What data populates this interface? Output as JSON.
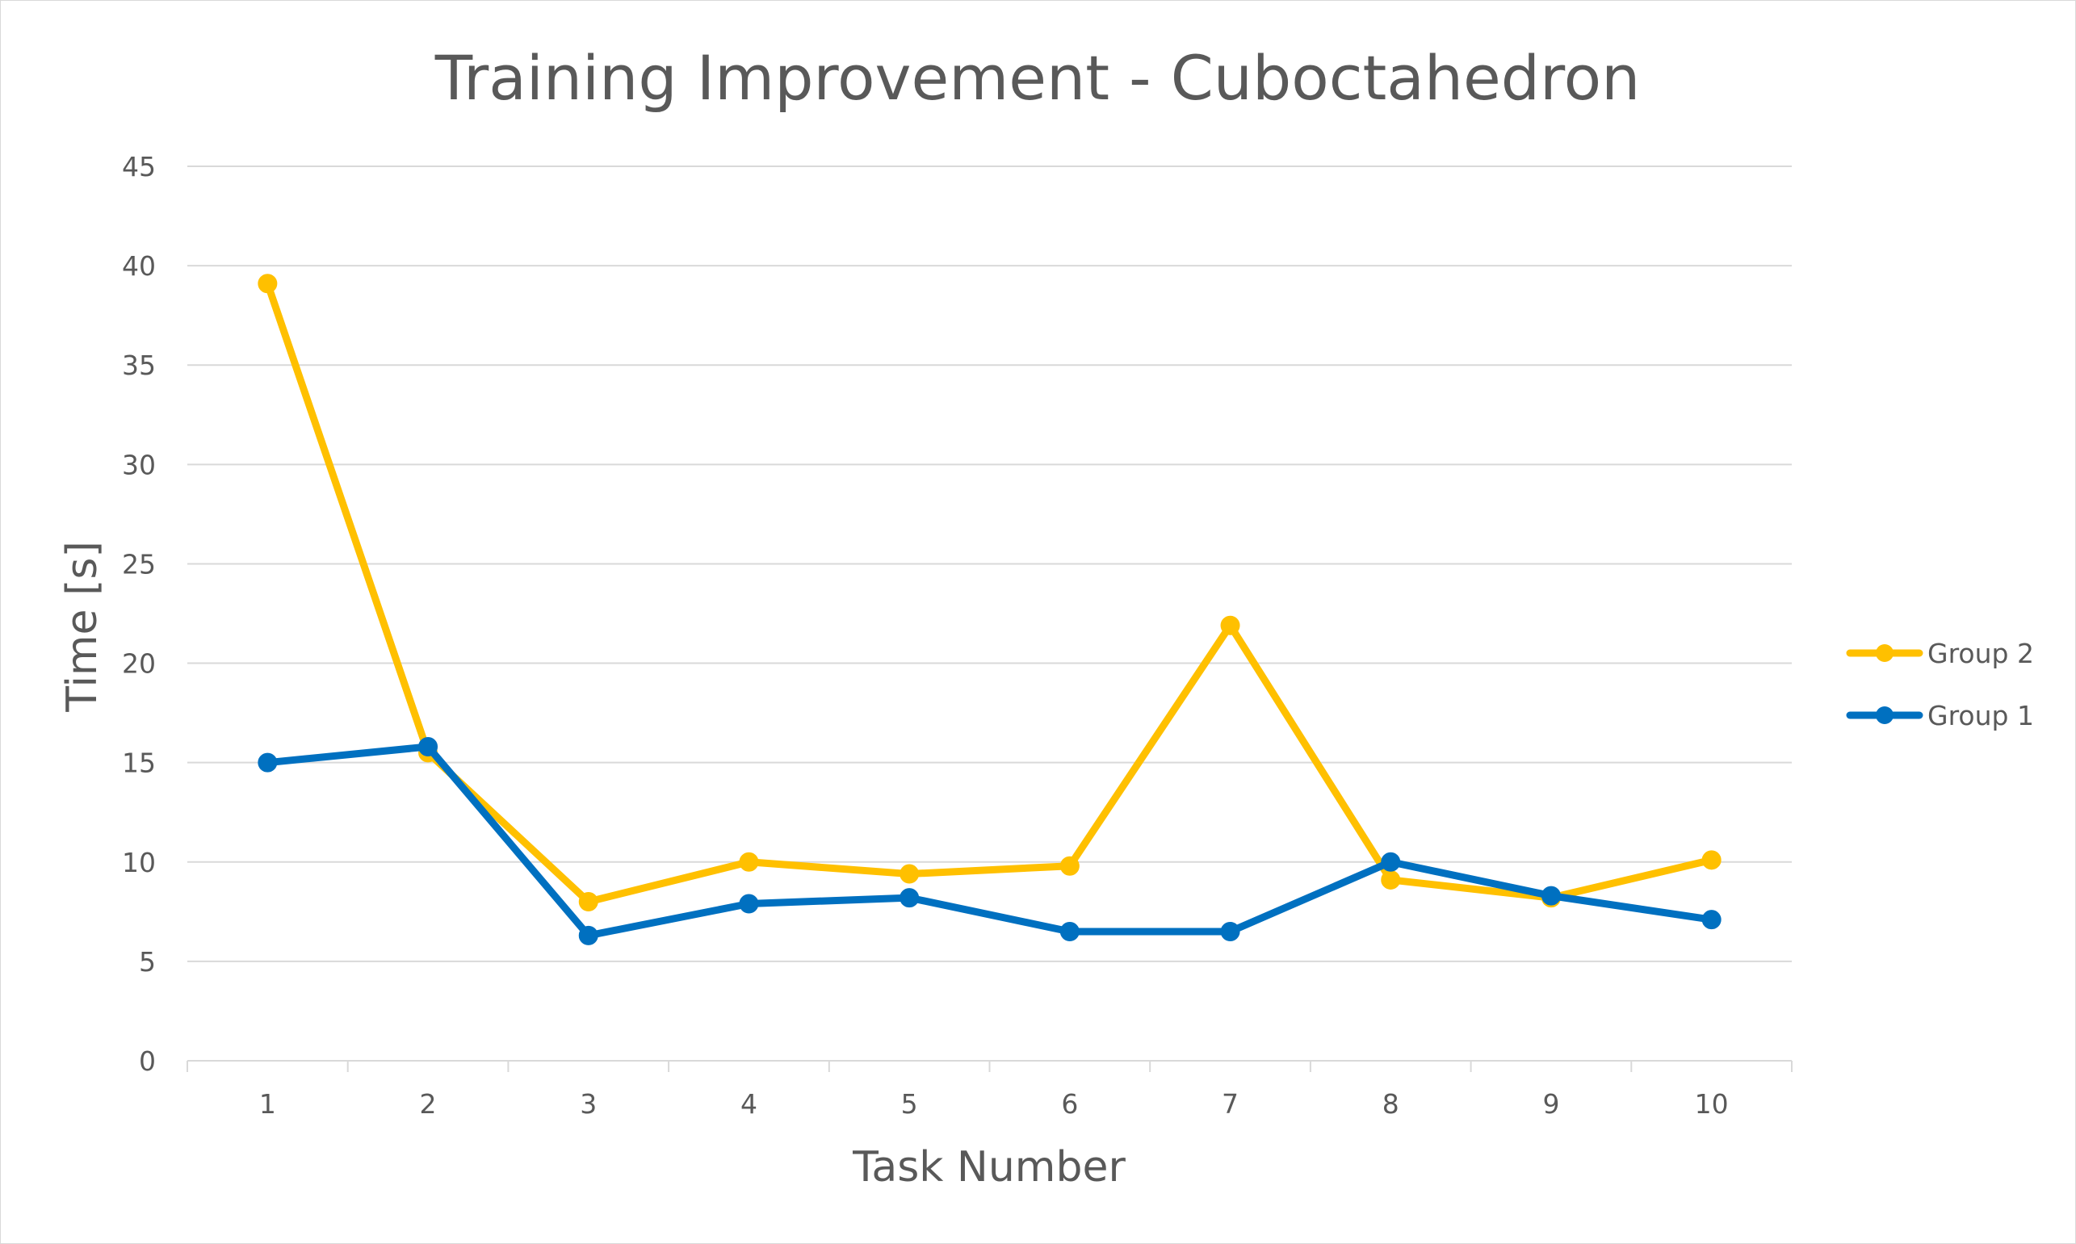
{
  "chart_data": {
    "type": "line",
    "title": "Training Improvement - Cuboctahedron",
    "xlabel": "Task Number",
    "ylabel": "Time [s]",
    "categories": [
      "1",
      "2",
      "3",
      "4",
      "5",
      "6",
      "7",
      "8",
      "9",
      "10"
    ],
    "ylim": [
      0,
      45
    ],
    "yticks": [
      "0",
      "5",
      "10",
      "15",
      "20",
      "25",
      "30",
      "35",
      "40",
      "45"
    ],
    "grid": true,
    "legend_position": "right",
    "series": [
      {
        "name": "Group 2",
        "color": "#FFC000",
        "values": [
          39.1,
          15.5,
          8.0,
          10.0,
          9.4,
          9.8,
          21.9,
          9.1,
          8.2,
          10.1
        ]
      },
      {
        "name": "Group 1",
        "color": "#0070C0",
        "values": [
          15.0,
          15.8,
          6.3,
          7.9,
          8.2,
          6.5,
          6.5,
          10.0,
          8.3,
          7.1
        ]
      }
    ]
  }
}
